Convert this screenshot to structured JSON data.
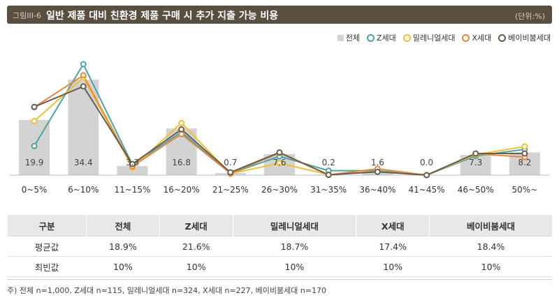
{
  "header": {
    "prefix": "그림III-6",
    "title": "일반 제품 대비 친환경 제품 구매 시 추가 지출 가능 비용",
    "unit": "(단위:%)"
  },
  "chart_data": {
    "type": "bar",
    "categories": [
      "0~5%",
      "6~10%",
      "11~15%",
      "16~20%",
      "21~25%",
      "26~30%",
      "31~35%",
      "36~40%",
      "41~45%",
      "46~50%",
      "50%~"
    ],
    "ylim": [
      0,
      40
    ],
    "bar_series": {
      "name": "전체",
      "values": [
        19.9,
        34.4,
        3.3,
        16.8,
        0.7,
        7.6,
        0.2,
        1.6,
        0.0,
        7.3,
        8.2
      ],
      "color": "#d3d3d3"
    },
    "bar_labels": [
      "19.9",
      "34.4",
      "3.3",
      "16.8",
      "0.7",
      "7.6",
      "0.2",
      "1.6",
      "0.0",
      "7.3",
      "8.2"
    ],
    "series": [
      {
        "name": "Z세대",
        "color": "#4aa3a5",
        "values": [
          10.5,
          40.0,
          3.8,
          15.5,
          0.6,
          6.8,
          1.6,
          1.6,
          0.0,
          6.9,
          9.3
        ]
      },
      {
        "name": "밀레니얼세대",
        "color": "#f0c030",
        "values": [
          19.5,
          35.2,
          2.7,
          18.8,
          0.5,
          4.3,
          0.2,
          1.3,
          0.0,
          7.4,
          10.3
        ]
      },
      {
        "name": "X세대",
        "color": "#e8873a",
        "values": [
          24.5,
          36.0,
          3.2,
          14.8,
          0.6,
          8.0,
          0.1,
          2.3,
          0.0,
          7.7,
          6.5
        ]
      },
      {
        "name": "베이비붐세대",
        "color": "#6b5d4d",
        "values": [
          24.6,
          32.0,
          4.0,
          16.5,
          1.0,
          8.2,
          0.1,
          1.2,
          0.0,
          7.8,
          7.8
        ]
      }
    ]
  },
  "legend": [
    {
      "label": "전체",
      "kind": "bar",
      "color": "#d3d3d3"
    },
    {
      "label": "Z세대",
      "kind": "ring",
      "color": "#4aa3a5"
    },
    {
      "label": "밀레니얼세대",
      "kind": "ring",
      "color": "#f0c030"
    },
    {
      "label": "X세대",
      "kind": "ring",
      "color": "#e8873a"
    },
    {
      "label": "베이비붐세대",
      "kind": "ring",
      "color": "#6b5d4d"
    }
  ],
  "table": {
    "headers": [
      "구분",
      "전체",
      "Z세대",
      "밀레니얼세대",
      "X세대",
      "베이비붐세대"
    ],
    "rows": [
      [
        "평균값",
        "18.9%",
        "21.6%",
        "18.7%",
        "17.4%",
        "18.4%"
      ],
      [
        "최빈값",
        "10%",
        "10%",
        "10%",
        "10%",
        "10%"
      ]
    ]
  },
  "footnote": "주) 전체 n=1,000, Z세대 n=115, 밀레니얼세대 n=324, X세대 n=227, 베이비붐세대 n=170"
}
